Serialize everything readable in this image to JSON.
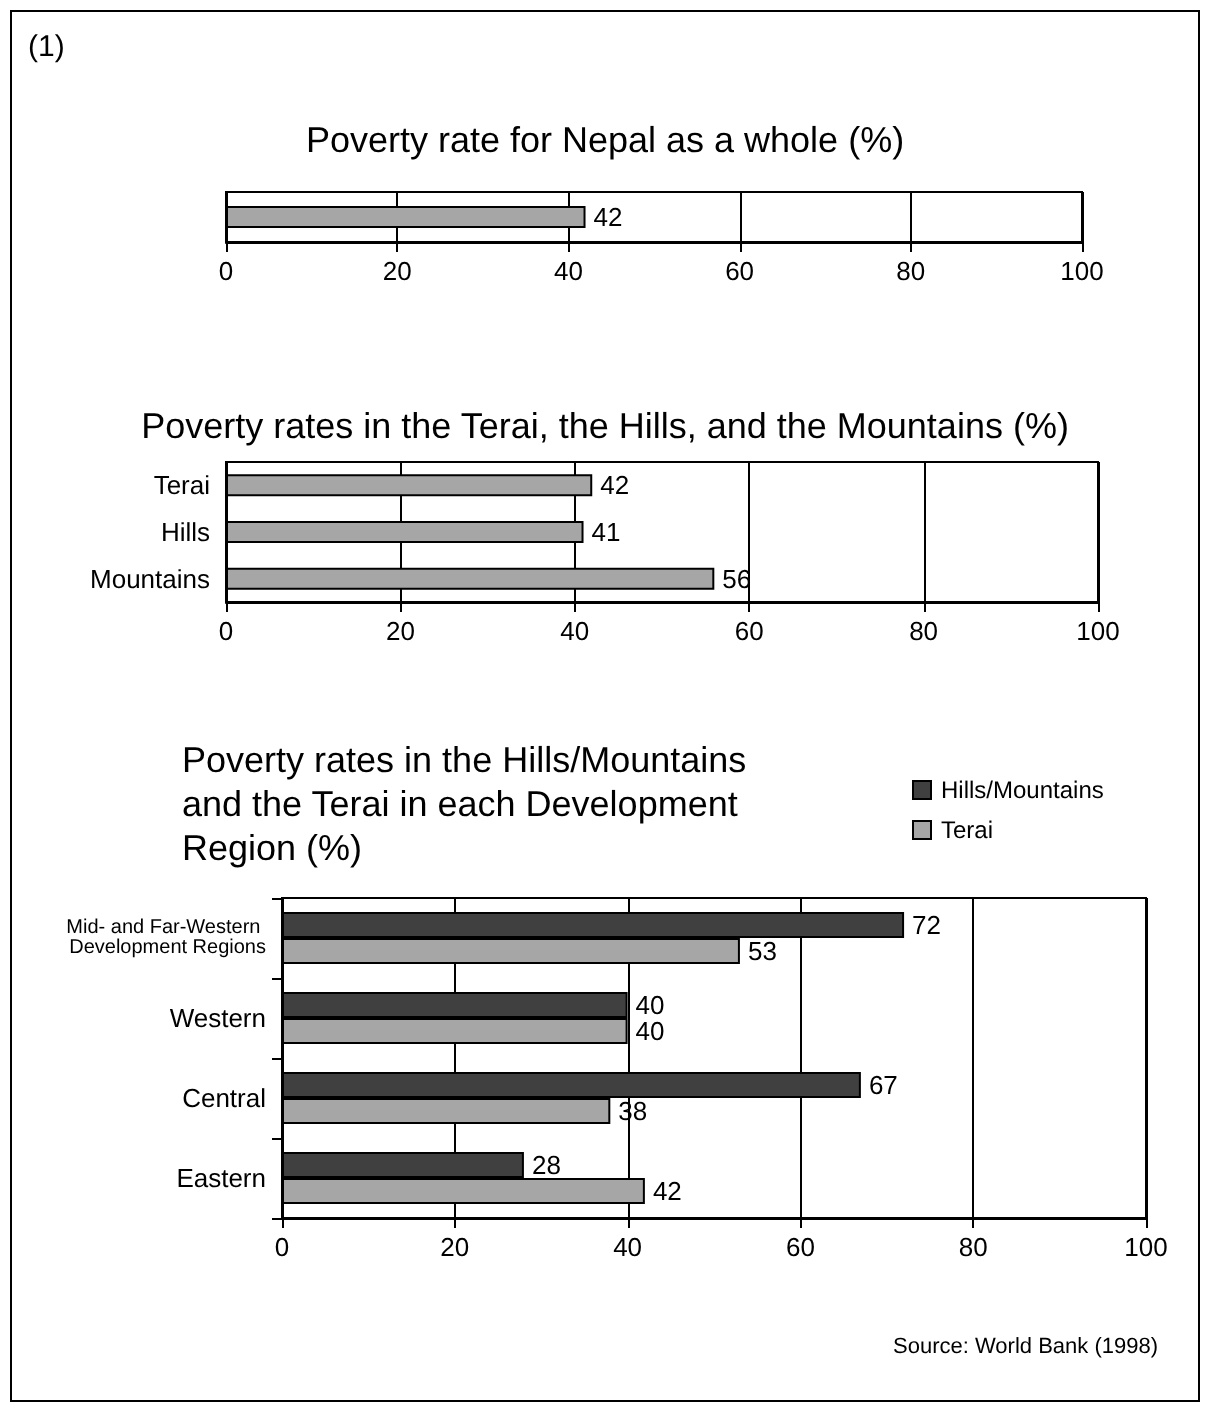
{
  "chart_data": [
    {
      "type": "bar",
      "orientation": "horizontal",
      "title": "Poverty rate for Nepal as a whole (%)",
      "annotations": [
        "(1)"
      ],
      "categories": [
        null
      ],
      "values": [
        42
      ],
      "color": "#a6a6a6",
      "xlim": [
        0,
        100
      ],
      "xticks": [
        0,
        20,
        40,
        60,
        80,
        100
      ],
      "grid": "x",
      "data_labels": true,
      "legend": false
    },
    {
      "type": "bar",
      "orientation": "horizontal",
      "title": "Poverty rates in the Terai, the Hills, and the Mountains (%)",
      "categories": [
        "Terai",
        "Hills",
        "Mountains"
      ],
      "values": [
        42,
        41,
        56
      ],
      "color": "#a6a6a6",
      "xlim": [
        0,
        100
      ],
      "xticks": [
        0,
        20,
        40,
        60,
        80,
        100
      ],
      "grid": "x",
      "data_labels": true,
      "legend": false
    },
    {
      "type": "bar",
      "orientation": "horizontal",
      "title": "Poverty rates in the Hills/Mountains and the Terai in each Development Region (%)",
      "annotations": [
        "Source: World Bank (1998)"
      ],
      "categories": [
        "Mid- and Far-Western Development Regions",
        "Western",
        "Central",
        "Eastern"
      ],
      "series": [
        {
          "name": "Hills/Mountains",
          "color": "#404040",
          "values": [
            72,
            40,
            67,
            28
          ]
        },
        {
          "name": "Terai",
          "color": "#a6a6a6",
          "values": [
            53,
            40,
            38,
            42
          ]
        }
      ],
      "xlim": [
        0,
        100
      ],
      "xticks": [
        0,
        20,
        40,
        60,
        80,
        100
      ],
      "grid": "x",
      "data_labels": true,
      "legend": "top right"
    }
  ]
}
